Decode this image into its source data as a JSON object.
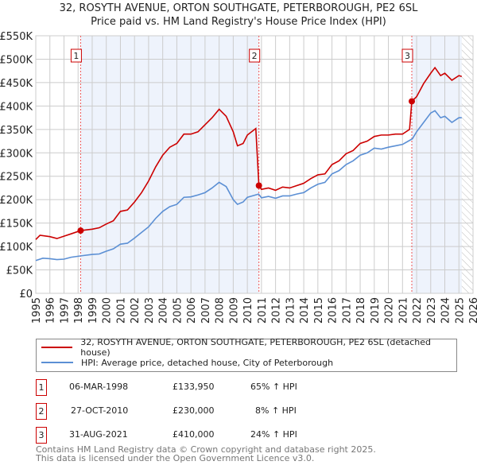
{
  "chart_data": {
    "type": "line",
    "title": "32, ROSYTH AVENUE, ORTON SOUTHGATE, PETERBOROUGH, PE2 6SL",
    "subtitle": "Price paid vs. HM Land Registry's House Price Index (HPI)",
    "xlim": [
      1995,
      2026
    ],
    "ylim": [
      0,
      550000
    ],
    "yticks": [
      0,
      50000,
      100000,
      150000,
      200000,
      250000,
      300000,
      350000,
      400000,
      450000,
      500000,
      550000
    ],
    "ytick_labels": [
      "£0",
      "£50K",
      "£100K",
      "£150K",
      "£200K",
      "£250K",
      "£300K",
      "£350K",
      "£400K",
      "£450K",
      "£500K",
      "£550K"
    ],
    "xticks": [
      1995,
      1996,
      1997,
      1998,
      1999,
      2000,
      2001,
      2002,
      2003,
      2004,
      2005,
      2006,
      2007,
      2008,
      2009,
      2010,
      2011,
      2012,
      2013,
      2014,
      2015,
      2016,
      2017,
      2018,
      2019,
      2020,
      2021,
      2022,
      2023,
      2024,
      2025,
      2026
    ],
    "grid": true,
    "series": [
      {
        "name": "32, ROSYTH AVENUE, ORTON SOUTHGATE, PETERBOROUGH, PE2 6SL (detached house)",
        "color": "#cc0000",
        "x": [
          1995,
          1995.3,
          1996,
          1996.5,
          1997,
          1997.5,
          1998.18,
          1999,
          1999.5,
          2000,
          2000.5,
          2001,
          2001.5,
          2002,
          2002.5,
          2003,
          2003.5,
          2004,
          2004.5,
          2005,
          2005.5,
          2006,
          2006.5,
          2007,
          2007.5,
          2008,
          2008.5,
          2009,
          2009.3,
          2009.7,
          2010,
          2010.6,
          2010.82,
          2011,
          2011.5,
          2012,
          2012.5,
          2013,
          2013.5,
          2014,
          2014.5,
          2015,
          2015.5,
          2016,
          2016.5,
          2017,
          2017.5,
          2018,
          2018.5,
          2019,
          2019.5,
          2020,
          2020.5,
          2021,
          2021.5,
          2021.66,
          2022,
          2022.5,
          2023,
          2023.3,
          2023.7,
          2024,
          2024.5,
          2025,
          2025.2
        ],
        "y": [
          115000,
          124000,
          121000,
          117000,
          122000,
          127000,
          133950,
          137000,
          140000,
          148000,
          155000,
          175000,
          178000,
          195000,
          215000,
          240000,
          270000,
          295000,
          312000,
          320000,
          340000,
          340000,
          345000,
          360000,
          375000,
          393000,
          378000,
          345000,
          315000,
          320000,
          338000,
          352000,
          230000,
          222000,
          225000,
          220000,
          227000,
          225000,
          230000,
          235000,
          245000,
          253000,
          255000,
          275000,
          283000,
          298000,
          305000,
          320000,
          325000,
          335000,
          338000,
          338000,
          340000,
          340000,
          350000,
          410000,
          420000,
          448000,
          470000,
          482000,
          465000,
          470000,
          455000,
          465000,
          463000
        ]
      },
      {
        "name": "HPI: Average price, detached house, City of Peterborough",
        "color": "#5b8fd4",
        "x": [
          1995,
          1995.5,
          1996,
          1996.5,
          1997,
          1997.5,
          1998.2,
          1999,
          1999.5,
          2000,
          2000.5,
          2001,
          2001.5,
          2002,
          2002.5,
          2003,
          2003.5,
          2004,
          2004.5,
          2005,
          2005.5,
          2006,
          2006.5,
          2007,
          2007.5,
          2008,
          2008.5,
          2009,
          2009.3,
          2009.7,
          2010,
          2010.8,
          2011,
          2011.5,
          2012,
          2012.5,
          2013,
          2013.5,
          2014,
          2014.5,
          2015,
          2015.5,
          2016,
          2016.5,
          2017,
          2017.5,
          2018,
          2018.5,
          2019,
          2019.5,
          2020,
          2020.5,
          2021,
          2021.7,
          2022,
          2022.5,
          2023,
          2023.3,
          2023.7,
          2024,
          2024.5,
          2025,
          2025.2
        ],
        "y": [
          70000,
          75000,
          74000,
          72000,
          73000,
          77000,
          80000,
          83000,
          84000,
          90000,
          95000,
          105000,
          107000,
          118000,
          130000,
          142000,
          160000,
          175000,
          185000,
          190000,
          205000,
          206000,
          210000,
          215000,
          225000,
          237000,
          228000,
          200000,
          190000,
          195000,
          205000,
          212000,
          204000,
          207000,
          203000,
          208000,
          208000,
          212000,
          215000,
          225000,
          233000,
          237000,
          255000,
          262000,
          275000,
          283000,
          295000,
          300000,
          310000,
          308000,
          312000,
          315000,
          318000,
          330000,
          345000,
          365000,
          385000,
          390000,
          375000,
          378000,
          365000,
          375000,
          375000
        ]
      }
    ],
    "sales": [
      {
        "n": "1",
        "x": 1998.18,
        "y": 133950,
        "date": "06-MAR-1998",
        "price": "£133,950",
        "hpi": "65% ↑ HPI"
      },
      {
        "n": "2",
        "x": 2010.82,
        "y": 230000,
        "date": "27-OCT-2010",
        "price": "£230,000",
        "hpi": "8% ↑ HPI"
      },
      {
        "n": "3",
        "x": 2021.66,
        "y": 410000,
        "date": "31-AUG-2021",
        "price": "£410,000",
        "hpi": "24% ↑ HPI"
      }
    ],
    "shaded_ranges": [
      [
        1998.18,
        2010.82
      ],
      [
        2021.66,
        2025.2
      ]
    ],
    "forecast_from": 2025.2
  },
  "footer": {
    "line1": "Contains HM Land Registry data © Crown copyright and database right 2025.",
    "line2": "This data is licensed under the Open Government Licence v3.0."
  }
}
